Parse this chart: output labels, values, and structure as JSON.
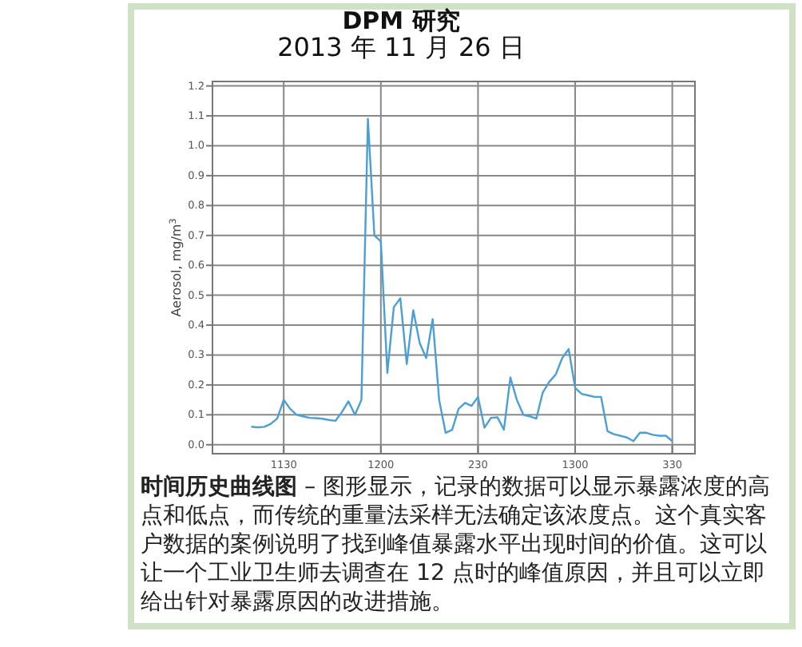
{
  "chart_data": {
    "type": "line",
    "title": "DPM 研究",
    "subtitle": "2013 年 11 月 26 日",
    "ylabel": "Aerosol, mg/m$^{3}$",
    "annotations": [
      "**时间历史曲线图** – 图形显示，记录的数据可以显示暴露浓度的高点和低点，而传统的重量法采样无法确定该浓度点。这个真实客户数据的案例说明了找到峰值暴露水平出现时间的价值。这可以让一个工业卫生师去调查在 12 点时的峰值原因，并且可以立即给出针对暴露原因的改进措施。"
    ],
    "categories": [
      null,
      null,
      null,
      null,
      null,
      "1130",
      null,
      null,
      null,
      null,
      null,
      null,
      null,
      null,
      null,
      null,
      null,
      null,
      null,
      null,
      "1200",
      null,
      null,
      null,
      null,
      null,
      null,
      null,
      null,
      null,
      null,
      null,
      null,
      null,
      null,
      "230",
      null,
      null,
      null,
      null,
      null,
      null,
      null,
      null,
      null,
      null,
      null,
      null,
      null,
      null,
      "1300",
      null,
      null,
      null,
      null,
      null,
      null,
      null,
      null,
      null,
      null,
      null,
      null,
      null,
      null,
      "330"
    ],
    "series": [
      {
        "color": "#4a9fd4",
        "values": [
          0.06,
          0.058,
          0.06,
          0.07,
          0.088,
          0.15,
          0.12,
          0.1,
          0.095,
          0.09,
          0.089,
          0.087,
          0.083,
          0.08,
          0.11,
          0.145,
          0.1,
          0.15,
          1.09,
          0.7,
          0.68,
          0.24,
          0.46,
          0.49,
          0.27,
          0.45,
          0.34,
          0.29,
          0.42,
          0.15,
          0.04,
          0.05,
          0.12,
          0.14,
          0.13,
          0.16,
          0.057,
          0.09,
          0.092,
          0.05,
          0.225,
          0.15,
          0.1,
          0.095,
          0.087,
          0.175,
          0.21,
          0.235,
          0.29,
          0.32,
          0.19,
          0.17,
          0.165,
          0.16,
          0.16,
          0.045,
          0.035,
          0.03,
          0.024,
          0.012,
          0.04,
          0.04,
          0.033,
          0.03,
          0.03,
          0.012
        ]
      }
    ],
    "ylim": [
      -0.03,
      1.215
    ],
    "yticks": [
      {
        "value": 0,
        "label": "0.0"
      },
      0.1,
      0.2,
      0.3,
      0.4,
      0.5,
      0.6,
      0.7,
      0.8,
      0.9,
      {
        "value": 1,
        "label": "1.0"
      },
      1.1,
      1.2
    ],
    "grid": true
  }
}
